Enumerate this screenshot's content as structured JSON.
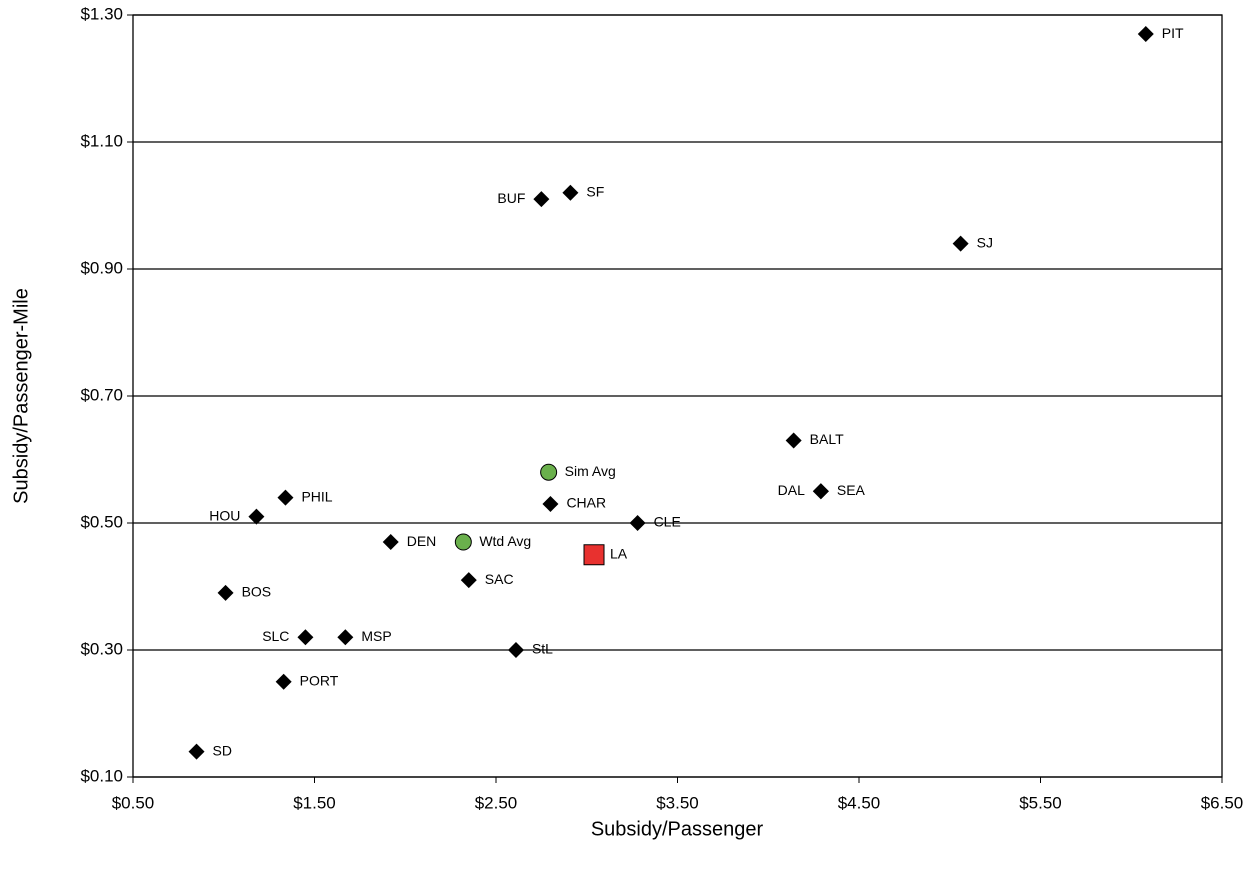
{
  "chart_data": {
    "type": "scatter",
    "x_label": "Subsidy/Passenger",
    "y_label": "Subsidy/Passenger-Mile",
    "xlim": [
      0.5,
      6.5
    ],
    "xticks": [
      {
        "value": 0.5,
        "label": "$0.50"
      },
      {
        "value": 1.5,
        "label": "$1.50"
      },
      {
        "value": 2.5,
        "label": "$2.50"
      },
      {
        "value": 3.5,
        "label": "$3.50"
      },
      {
        "value": 4.5,
        "label": "$4.50"
      },
      {
        "value": 5.5,
        "label": "$5.50"
      },
      {
        "value": 6.5,
        "label": "$6.50"
      }
    ],
    "ylim": [
      0.1,
      1.3
    ],
    "yticks": [
      {
        "value": 0.1,
        "label": "$0.10"
      },
      {
        "value": 0.3,
        "label": "$0.30"
      },
      {
        "value": 0.5,
        "label": "$0.50"
      },
      {
        "value": 0.7,
        "label": "$0.70"
      },
      {
        "value": 0.9,
        "label": "$0.90"
      },
      {
        "value": 1.1,
        "label": "$1.10"
      },
      {
        "value": 1.3,
        "label": "$1.30"
      }
    ],
    "grid": true,
    "series": [
      {
        "marker": "diamond",
        "color": "#000000",
        "labels": [
          "PIT",
          "SF",
          "BUF",
          "SJ",
          "BALT",
          "SEA",
          "DAL",
          "CHAR",
          "PHIL",
          "HOU",
          "CLE",
          "DEN",
          "SAC",
          "BOS",
          "SLC",
          "MSP",
          "StL",
          "PORT",
          "SD"
        ],
        "label_sides": [
          "right",
          "right",
          "left",
          "right",
          "right",
          "right",
          "left",
          "right",
          "right",
          "left",
          "right",
          "right",
          "right",
          "right",
          "left",
          "right",
          "right",
          "right",
          "right"
        ],
        "x": [
          6.08,
          2.91,
          2.75,
          5.06,
          4.14,
          4.29,
          4.29,
          2.8,
          1.34,
          1.18,
          3.28,
          1.92,
          2.35,
          1.01,
          1.45,
          1.67,
          2.61,
          1.33,
          0.85
        ],
        "values": [
          1.27,
          1.02,
          1.01,
          0.94,
          0.63,
          0.55,
          0.55,
          0.53,
          0.54,
          0.51,
          0.5,
          0.47,
          0.41,
          0.39,
          0.32,
          0.32,
          0.3,
          0.25,
          0.14
        ]
      },
      {
        "marker": "circle",
        "color": "#6ab04c",
        "labels": [
          "Sim Avg",
          "Wtd Avg"
        ],
        "label_sides": [
          "right",
          "right"
        ],
        "x": [
          2.79,
          2.32
        ],
        "values": [
          0.58,
          0.47
        ]
      },
      {
        "marker": "square",
        "color": "#e8312f",
        "labels": [
          "LA"
        ],
        "label_sides": [
          "right"
        ],
        "x": [
          3.04
        ],
        "values": [
          0.45
        ]
      }
    ]
  }
}
